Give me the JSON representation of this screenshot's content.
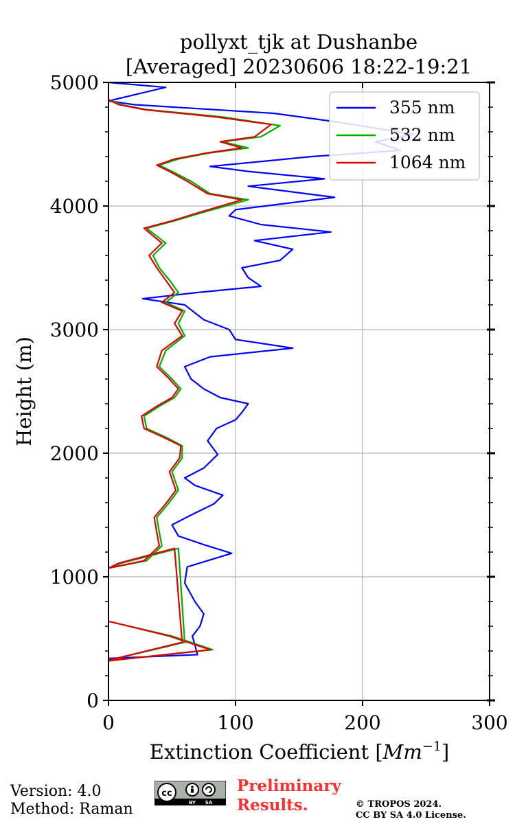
{
  "chart_data": {
    "type": "line",
    "title_line1": "pollyxt_tjk at Dushanbe",
    "title_line2": "[Averaged] 20230606 18:22-19:21",
    "xlabel_text": "Extinction Coefficient [",
    "xlabel_unit": "Mm",
    "xlabel_exp": "−1",
    "xlabel_close": "]",
    "ylabel": "Height (m)",
    "xlim": [
      0,
      300
    ],
    "ylim": [
      0,
      5000
    ],
    "xticks": [
      0,
      100,
      200,
      300
    ],
    "yticks": [
      0,
      1000,
      2000,
      3000,
      4000,
      5000
    ],
    "xtick_labels": [
      "0",
      "100",
      "200",
      "300"
    ],
    "ytick_labels": [
      "0",
      "1000",
      "2000",
      "3000",
      "4000",
      "5000"
    ],
    "grid": true,
    "legend_position": "top-right",
    "series": [
      {
        "name": "355 nm",
        "color": "#0000ff",
        "points": [
          [
            0,
            340
          ],
          [
            70,
            370
          ],
          [
            68,
            450
          ],
          [
            66,
            520
          ],
          [
            72,
            600
          ],
          [
            75,
            700
          ],
          [
            68,
            800
          ],
          [
            60,
            950
          ],
          [
            62,
            1080
          ],
          [
            97,
            1190
          ],
          [
            75,
            1260
          ],
          [
            55,
            1330
          ],
          [
            50,
            1420
          ],
          [
            65,
            1500
          ],
          [
            83,
            1590
          ],
          [
            90,
            1660
          ],
          [
            68,
            1740
          ],
          [
            60,
            1800
          ],
          [
            75,
            1880
          ],
          [
            86,
            1990
          ],
          [
            78,
            2100
          ],
          [
            85,
            2200
          ],
          [
            100,
            2270
          ],
          [
            105,
            2330
          ],
          [
            110,
            2400
          ],
          [
            88,
            2450
          ],
          [
            75,
            2520
          ],
          [
            65,
            2600
          ],
          [
            60,
            2700
          ],
          [
            80,
            2780
          ],
          [
            145,
            2850
          ],
          [
            100,
            2920
          ],
          [
            95,
            3000
          ],
          [
            75,
            3080
          ],
          [
            60,
            3200
          ],
          [
            27,
            3250
          ],
          [
            70,
            3300
          ],
          [
            120,
            3350
          ],
          [
            110,
            3420
          ],
          [
            105,
            3500
          ],
          [
            135,
            3560
          ],
          [
            145,
            3650
          ],
          [
            115,
            3720
          ],
          [
            175,
            3790
          ],
          [
            120,
            3850
          ],
          [
            95,
            3920
          ],
          [
            100,
            3970
          ],
          [
            178,
            4070
          ],
          [
            140,
            4120
          ],
          [
            110,
            4160
          ],
          [
            170,
            4220
          ],
          [
            110,
            4280
          ],
          [
            80,
            4320
          ],
          [
            160,
            4400
          ],
          [
            230,
            4450
          ],
          [
            210,
            4520
          ],
          [
            240,
            4580
          ],
          [
            180,
            4680
          ],
          [
            130,
            4750
          ],
          [
            20,
            4820
          ],
          [
            0,
            4850
          ],
          [
            45,
            4960
          ],
          [
            0,
            5000
          ]
        ]
      },
      {
        "name": "532 nm",
        "color": "#00aa00",
        "points": [
          [
            0,
            640
          ],
          [
            50,
            520
          ],
          [
            82,
            410
          ],
          [
            0,
            320
          ],
          [
            0,
            325
          ],
          [
            60,
            470
          ],
          [
            55,
            1230
          ],
          [
            10,
            1110
          ],
          [
            0,
            1070
          ],
          [
            30,
            1130
          ],
          [
            42,
            1250
          ],
          [
            40,
            1360
          ],
          [
            38,
            1480
          ],
          [
            47,
            1590
          ],
          [
            55,
            1700
          ],
          [
            50,
            1850
          ],
          [
            58,
            1960
          ],
          [
            58,
            2060
          ],
          [
            45,
            2130
          ],
          [
            30,
            2200
          ],
          [
            28,
            2300
          ],
          [
            40,
            2380
          ],
          [
            52,
            2450
          ],
          [
            57,
            2520
          ],
          [
            50,
            2600
          ],
          [
            40,
            2700
          ],
          [
            45,
            2830
          ],
          [
            60,
            2950
          ],
          [
            55,
            3050
          ],
          [
            60,
            3150
          ],
          [
            45,
            3220
          ],
          [
            55,
            3300
          ],
          [
            48,
            3400
          ],
          [
            40,
            3500
          ],
          [
            35,
            3600
          ],
          [
            45,
            3700
          ],
          [
            30,
            3820
          ],
          [
            52,
            3880
          ],
          [
            75,
            3950
          ],
          [
            110,
            4050
          ],
          [
            80,
            4100
          ],
          [
            65,
            4200
          ],
          [
            50,
            4280
          ],
          [
            40,
            4330
          ],
          [
            55,
            4380
          ],
          [
            80,
            4430
          ],
          [
            110,
            4470
          ],
          [
            90,
            4520
          ],
          [
            120,
            4560
          ],
          [
            135,
            4650
          ],
          [
            90,
            4720
          ],
          [
            30,
            4780
          ],
          [
            10,
            4820
          ],
          [
            0,
            4860
          ]
        ]
      },
      {
        "name": "1064 nm",
        "color": "#dd0000",
        "points": [
          [
            0,
            640
          ],
          [
            48,
            520
          ],
          [
            80,
            410
          ],
          [
            0,
            320
          ],
          [
            0,
            325
          ],
          [
            58,
            470
          ],
          [
            52,
            1230
          ],
          [
            8,
            1110
          ],
          [
            0,
            1070
          ],
          [
            28,
            1130
          ],
          [
            40,
            1250
          ],
          [
            38,
            1360
          ],
          [
            36,
            1480
          ],
          [
            45,
            1590
          ],
          [
            53,
            1700
          ],
          [
            48,
            1850
          ],
          [
            56,
            1960
          ],
          [
            57,
            2060
          ],
          [
            43,
            2130
          ],
          [
            28,
            2200
          ],
          [
            26,
            2300
          ],
          [
            38,
            2380
          ],
          [
            50,
            2450
          ],
          [
            55,
            2520
          ],
          [
            48,
            2600
          ],
          [
            38,
            2700
          ],
          [
            42,
            2830
          ],
          [
            58,
            2950
          ],
          [
            52,
            3050
          ],
          [
            58,
            3150
          ],
          [
            42,
            3220
          ],
          [
            52,
            3300
          ],
          [
            45,
            3400
          ],
          [
            38,
            3500
          ],
          [
            32,
            3600
          ],
          [
            42,
            3700
          ],
          [
            28,
            3820
          ],
          [
            50,
            3880
          ],
          [
            72,
            3950
          ],
          [
            105,
            4050
          ],
          [
            78,
            4100
          ],
          [
            62,
            4200
          ],
          [
            48,
            4280
          ],
          [
            38,
            4330
          ],
          [
            52,
            4380
          ],
          [
            78,
            4430
          ],
          [
            105,
            4470
          ],
          [
            88,
            4520
          ],
          [
            115,
            4560
          ],
          [
            128,
            4660
          ],
          [
            85,
            4720
          ],
          [
            28,
            4780
          ],
          [
            8,
            4820
          ],
          [
            0,
            4860
          ]
        ]
      }
    ]
  },
  "footer": {
    "version": "Version: 4.0",
    "method": "Method: Raman",
    "preliminary_line1": "Preliminary",
    "preliminary_line2": "Results.",
    "preliminary_color": "#ff3030",
    "copyright_line1": "© TROPOS 2024.",
    "copyright_line2": "CC BY SA 4.0 License.",
    "cc_by": "BY",
    "cc_sa": "SA"
  }
}
